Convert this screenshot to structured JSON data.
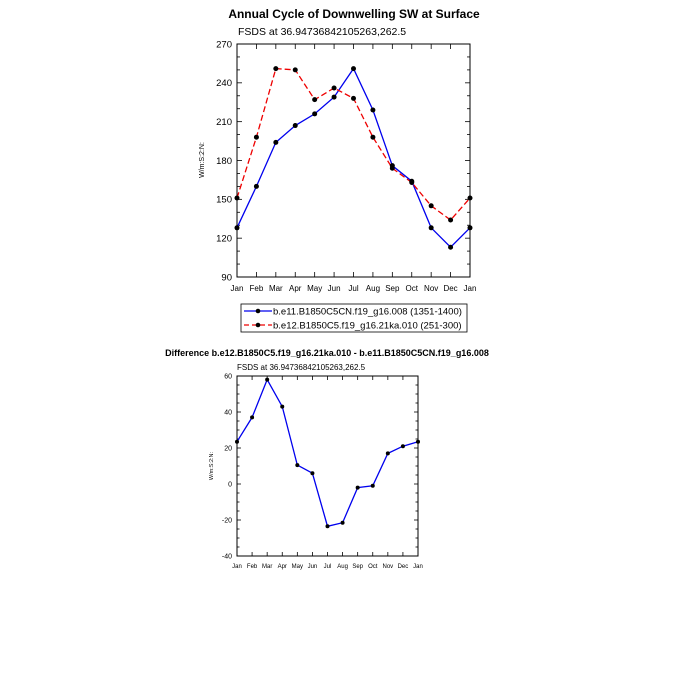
{
  "colors": {
    "blue": "#0000ee",
    "red": "#ee0000",
    "black": "#000000"
  },
  "chart_data": [
    {
      "type": "line",
      "title": "Annual Cycle of Downwelling SW at Surface",
      "subtitle": "FSDS at 36.94736842105263,262.5",
      "ylabel": "W/m:S:2:N:",
      "xlabel": "",
      "categories": [
        "Jan",
        "Feb",
        "Mar",
        "Apr",
        "May",
        "Jun",
        "Jul",
        "Aug",
        "Sep",
        "Oct",
        "Nov",
        "Dec",
        "Jan"
      ],
      "ylim": [
        90,
        270
      ],
      "yticks": [
        90,
        120,
        150,
        180,
        210,
        240,
        270
      ],
      "legend_position": "bottom",
      "series": [
        {
          "name": "b.e11.B1850C5CN.f19_g16.008 (1351-1400)",
          "color": "#0000ee",
          "dash": "solid",
          "values": [
            128,
            160,
            194,
            207,
            216,
            229,
            251,
            219,
            176,
            164,
            128,
            113,
            128
          ]
        },
        {
          "name": "b.e12.B1850C5.f19_g16.21ka.010 (251-300)",
          "color": "#ee0000",
          "dash": "dashed",
          "values": [
            151,
            198,
            251,
            250,
            227,
            236,
            228,
            198,
            174,
            163,
            145,
            134,
            151
          ]
        }
      ]
    },
    {
      "type": "line",
      "title": "Difference b.e12.B1850C5.f19_g16.21ka.010 - b.e11.B1850C5CN.f19_g16.008",
      "subtitle": "FSDS at 36.94736842105263,262.5",
      "ylabel": "W/m:S:2:N:",
      "xlabel": "",
      "categories": [
        "Jan",
        "Feb",
        "Mar",
        "Apr",
        "May",
        "Jun",
        "Jul",
        "Aug",
        "Sep",
        "Oct",
        "Nov",
        "Dec",
        "Jan"
      ],
      "ylim": [
        -40,
        60
      ],
      "yticks": [
        -40,
        -20,
        0,
        20,
        40,
        60
      ],
      "series": [
        {
          "name": "",
          "color": "#0000ee",
          "dash": "solid",
          "values": [
            23.5,
            37,
            58,
            43,
            10.5,
            6,
            -23.5,
            -21.5,
            -2,
            -1,
            17,
            21,
            23.5
          ]
        }
      ]
    }
  ]
}
